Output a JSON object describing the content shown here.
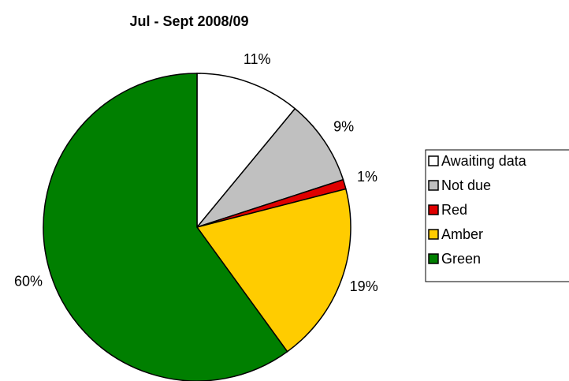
{
  "chart_data": {
    "type": "pie",
    "title": "Jul - Sept 2008/09",
    "categories": [
      "Awaiting data",
      "Not due",
      "Red",
      "Amber",
      "Green"
    ],
    "values": [
      11,
      9,
      1,
      19,
      60
    ],
    "value_labels": [
      "11%",
      "9%",
      "1%",
      "19%",
      "60%"
    ],
    "colors": [
      "#ffffff",
      "#c0c0c0",
      "#e00000",
      "#ffcc00",
      "#007f00"
    ],
    "legend": "right"
  }
}
